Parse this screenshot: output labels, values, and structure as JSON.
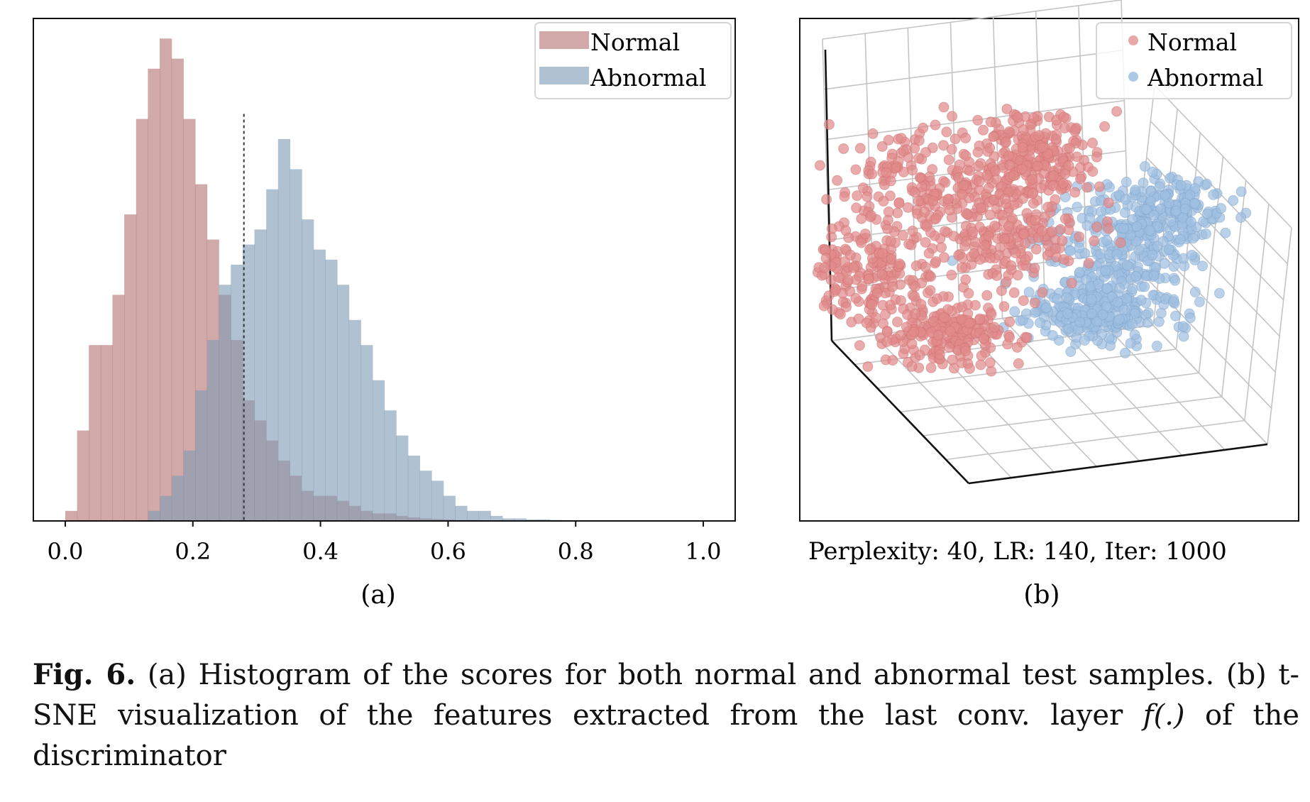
{
  "figure": {
    "caption": {
      "label": "Fig. 6.",
      "text_part1": "(a) Histogram of the scores for both normal and abnormal test samples. (b) t-SNE visualization of the features extracted from the last conv. layer ",
      "math": "f(.)",
      "text_part2": " of the discriminator"
    }
  },
  "colors": {
    "normal": "#b57474",
    "abnormal": "#7f9bb5",
    "normal_point": "#e08b8b",
    "abnormal_point": "#9fbfe0",
    "frame": "#111111"
  },
  "chart_data": [
    {
      "panel": "a",
      "type": "histogram",
      "sublabel": "(a)",
      "xlim": [
        -0.05,
        1.05
      ],
      "xticks": [
        0.0,
        0.2,
        0.4,
        0.6,
        0.8,
        1.0
      ],
      "xtick_labels": [
        "0.0",
        "0.2",
        "0.4",
        "0.6",
        "0.8",
        "1.0"
      ],
      "ylim": [
        0,
        100
      ],
      "bin_width": 0.0185,
      "threshold": 0.28,
      "legend": {
        "position": "top-right",
        "entries": [
          "Normal",
          "Abnormal"
        ]
      },
      "series": [
        {
          "name": "Normal",
          "bin_start": 0.0,
          "values": [
            2,
            18,
            35,
            35,
            45,
            61,
            80,
            90,
            96,
            92,
            80,
            67,
            56,
            45,
            36,
            24,
            20,
            16,
            12,
            9,
            6,
            5,
            5,
            4,
            3,
            2,
            1.5,
            1.5,
            1,
            0.7,
            0.5,
            0.4,
            0.3,
            0.2,
            0.2,
            0.1
          ]
        },
        {
          "name": "Abnormal",
          "bin_start": 0.13,
          "values": [
            2,
            5,
            9,
            14,
            26,
            36,
            47,
            51,
            55,
            58,
            66,
            76,
            70,
            60,
            54,
            52,
            47,
            40,
            35,
            28,
            22,
            17,
            13,
            10,
            8,
            5,
            3,
            2,
            2,
            1,
            0.5,
            0.5,
            0.3,
            0.3,
            0.2,
            0.1,
            0.1
          ]
        }
      ]
    },
    {
      "panel": "b",
      "type": "scatter",
      "projection": "3d",
      "sublabel": "(b)",
      "annotation": "Perplexity: 40, LR: 140, Iter: 1000",
      "legend": {
        "position": "top-right",
        "entries": [
          "Normal",
          "Abnormal"
        ]
      },
      "series": [
        {
          "name": "Normal",
          "n_points": 1000,
          "centroid_hint": "left"
        },
        {
          "name": "Abnormal",
          "n_points": 650,
          "centroid_hint": "right"
        }
      ]
    }
  ]
}
